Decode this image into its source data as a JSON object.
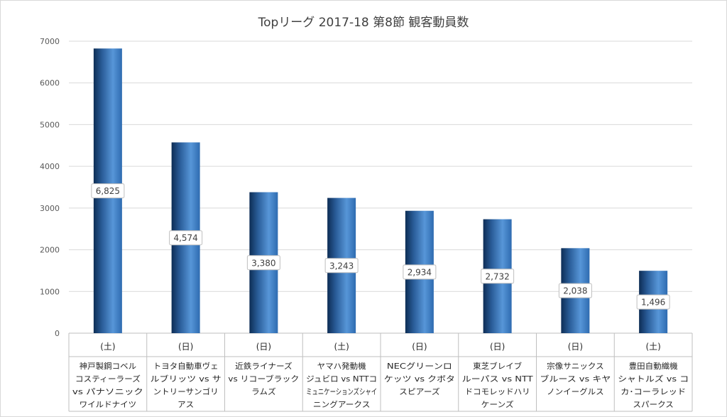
{
  "chart_data": {
    "type": "bar",
    "title": "Topリーグ 2017-18 第8節 観客動員数",
    "xlabel": "",
    "ylabel": "",
    "ylim": [
      0,
      7000
    ],
    "yticks": [
      "0",
      "1000",
      "2000",
      "3000",
      "4000",
      "5000",
      "6000",
      "7000"
    ],
    "grid": true,
    "legend": "none",
    "bar_color": "#2e75b6",
    "categories": [
      {
        "day": "(土)",
        "lines": [
          "神戸製鋼コベル",
          "コスティーラーズ",
          "vs パナソニック",
          "ワイルドナイツ"
        ]
      },
      {
        "day": "(日)",
        "lines": [
          "トヨタ自動車ヴェ",
          "ルブリッツ vs サ",
          "ントリーサンゴリ",
          "アス"
        ]
      },
      {
        "day": "(日)",
        "lines": [
          "近鉄ライナーズ",
          "vs リコーブラック",
          "ラムズ"
        ]
      },
      {
        "day": "(土)",
        "lines": [
          "ヤマハ発動機",
          "ジュビロ vs NTTコ",
          "ミュニケーションズシャイ",
          "ニングアークス"
        ]
      },
      {
        "day": "(日)",
        "lines": [
          "NECグリーンロ",
          "ケッツ vs クボタ",
          "スピアーズ"
        ]
      },
      {
        "day": "(日)",
        "lines": [
          "東芝ブレイブ",
          "ルーパス vs NTT",
          "ドコモレッドハリ",
          "ケーンズ"
        ]
      },
      {
        "day": "(日)",
        "lines": [
          "宗像サニックス",
          "ブルース vs キヤ",
          "ノンイーグルス"
        ]
      },
      {
        "day": "(土)",
        "lines": [
          "豊田自動織機",
          "シャトルズ vs コ",
          "カ･コーラレッド",
          "スパークス"
        ]
      }
    ],
    "values": [
      6825,
      4574,
      3380,
      3243,
      2934,
      2732,
      2038,
      1496
    ],
    "value_labels": [
      "6,825",
      "4,574",
      "3,380",
      "3,243",
      "2,934",
      "2,732",
      "2,038",
      "1,496"
    ]
  }
}
